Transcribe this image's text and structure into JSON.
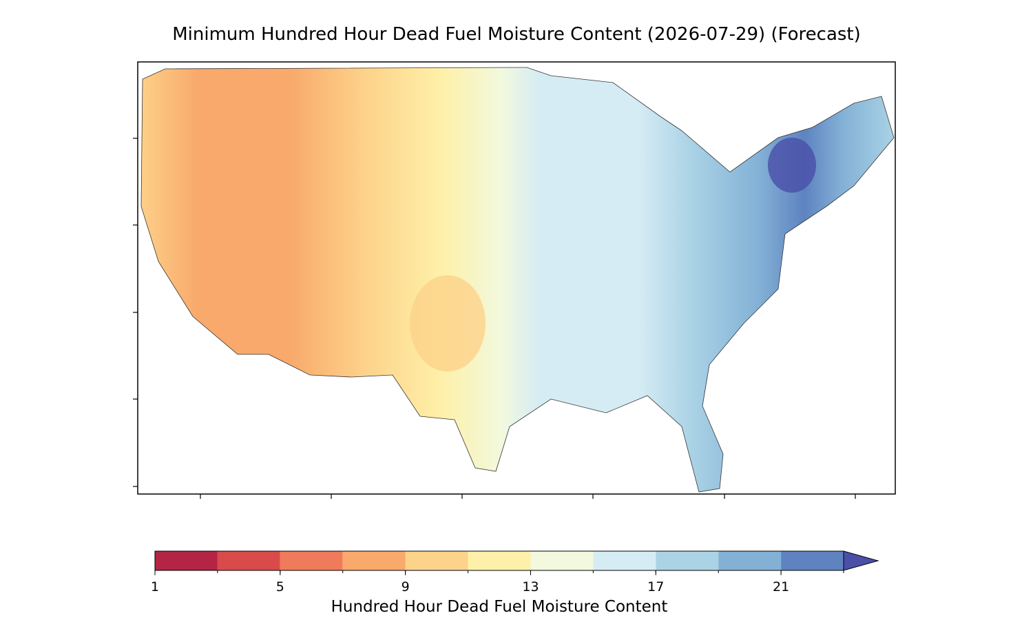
{
  "title": "Minimum Hundred Hour Dead Fuel Moisture Content (2026-07-29) (Forecast)",
  "colorbar": {
    "label": "Hundred Hour Dead Fuel Moisture Content",
    "lim": [
      1,
      23
    ],
    "boundaries": [
      1,
      3,
      5,
      7,
      9,
      11,
      13,
      15,
      17,
      19,
      21,
      23
    ],
    "colors": [
      "#b42444",
      "#d94b4a",
      "#ef7b5b",
      "#f8a96b",
      "#fdd28a",
      "#fef0a8",
      "#f2f9de",
      "#d6ecf4",
      "#abd3e6",
      "#83b1d6",
      "#5e83c0"
    ],
    "extend_color": "#4a4fa8",
    "ticks": [
      1,
      5,
      9,
      13,
      17,
      21
    ]
  }
}
